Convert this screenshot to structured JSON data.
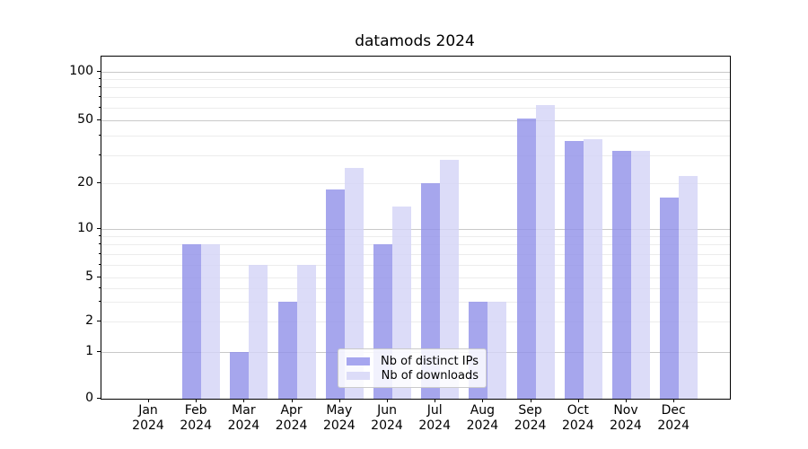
{
  "chart_data": {
    "type": "bar",
    "title": "datamods 2024",
    "categories": [
      "Jan 2024",
      "Feb 2024",
      "Mar 2024",
      "Apr 2024",
      "May 2024",
      "Jun 2024",
      "Jul 2024",
      "Aug 2024",
      "Sep 2024",
      "Oct 2024",
      "Nov 2024",
      "Dec 2024"
    ],
    "series": [
      {
        "name": "Nb of distinct IPs",
        "color": "#a6a6ef",
        "values": [
          0,
          8,
          1,
          3,
          18,
          8,
          20,
          3,
          51,
          37,
          32,
          16
        ]
      },
      {
        "name": "Nb of downloads",
        "color": "#dcdcf8",
        "values": [
          0,
          8,
          6,
          6,
          25,
          14,
          28,
          3,
          62,
          38,
          32,
          22
        ]
      }
    ],
    "xlabel": "",
    "ylabel": "",
    "yscale": "symlog",
    "ylim": [
      0,
      120
    ],
    "yticks_labeled": [
      0,
      1,
      2,
      5,
      10,
      20,
      50,
      100
    ],
    "ygrid_minor": [
      2,
      3,
      4,
      5,
      6,
      7,
      8,
      9,
      20,
      30,
      40,
      60,
      70,
      80,
      90
    ],
    "ygrid_major": [
      1,
      10,
      50,
      100
    ],
    "grid": "horizontal",
    "legend_position": "lower center"
  }
}
